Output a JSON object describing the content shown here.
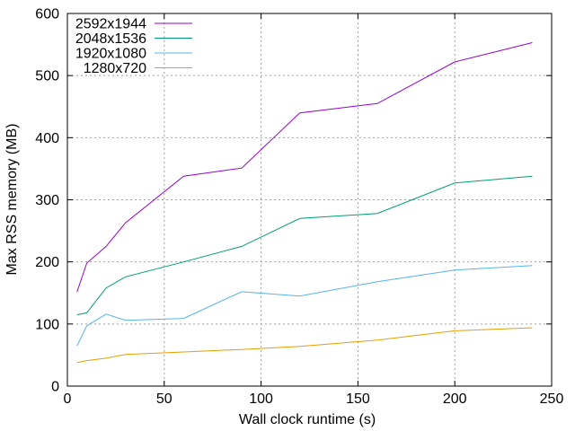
{
  "chart_data": {
    "type": "line",
    "title": "",
    "xlabel": "Wall clock runtime (s)",
    "ylabel": "Max RSS memory (MB)",
    "xlim": [
      0,
      250
    ],
    "ylim": [
      0,
      600
    ],
    "xticks": [
      0,
      50,
      100,
      150,
      200,
      250
    ],
    "yticks": [
      0,
      100,
      200,
      300,
      400,
      500,
      600
    ],
    "grid": true,
    "legend_position": "top-left",
    "series": [
      {
        "name": "2592x1944",
        "color": "#9400d3",
        "points": [
          [
            5,
            152
          ],
          [
            10,
            198
          ],
          [
            20,
            225
          ],
          [
            30,
            263
          ],
          [
            60,
            338
          ],
          [
            90,
            351
          ],
          [
            120,
            440
          ],
          [
            160,
            455
          ],
          [
            200,
            522
          ],
          [
            240,
            553
          ]
        ]
      },
      {
        "name": "2048x1536",
        "color": "#009e73",
        "points": [
          [
            5,
            115
          ],
          [
            10,
            118
          ],
          [
            20,
            158
          ],
          [
            30,
            176
          ],
          [
            60,
            200
          ],
          [
            90,
            225
          ],
          [
            120,
            270
          ],
          [
            160,
            278
          ],
          [
            200,
            327
          ],
          [
            240,
            338
          ]
        ]
      },
      {
        "name": "1920x1080",
        "color": "#56b4e9",
        "points": [
          [
            5,
            65
          ],
          [
            10,
            97
          ],
          [
            20,
            116
          ],
          [
            30,
            106
          ],
          [
            60,
            109
          ],
          [
            90,
            152
          ],
          [
            120,
            145
          ],
          [
            160,
            168
          ],
          [
            200,
            187
          ],
          [
            240,
            194
          ]
        ]
      },
      {
        "name": "1280x720",
        "color": "#e69f00",
        "points": [
          [
            5,
            38
          ],
          [
            10,
            41
          ],
          [
            20,
            45
          ],
          [
            30,
            51
          ],
          [
            60,
            55
          ],
          [
            90,
            59
          ],
          [
            120,
            64
          ],
          [
            160,
            74
          ],
          [
            200,
            89
          ],
          [
            240,
            94
          ]
        ]
      }
    ]
  }
}
